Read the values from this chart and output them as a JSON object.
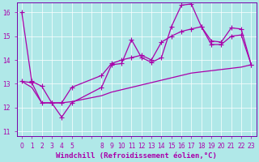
{
  "xlabel": "Windchill (Refroidissement éolien,°C)",
  "bg_color": "#b0e8e8",
  "line_color": "#aa00aa",
  "grid_color": "#ffffff",
  "ylim": [
    10.8,
    16.4
  ],
  "xlim": [
    -0.5,
    23.5
  ],
  "yticks": [
    11,
    12,
    13,
    14,
    15,
    16
  ],
  "xticks": [
    0,
    1,
    2,
    3,
    4,
    5,
    8,
    9,
    10,
    11,
    12,
    13,
    14,
    15,
    16,
    17,
    18,
    19,
    20,
    21,
    22,
    23
  ],
  "series": [
    {
      "x": [
        0,
        1,
        2,
        3,
        4,
        5,
        8,
        9,
        10,
        11,
        12,
        13,
        14,
        15,
        16,
        17,
        18,
        19,
        20,
        21,
        22,
        23
      ],
      "y": [
        16.0,
        13.1,
        12.9,
        12.2,
        11.6,
        12.2,
        12.85,
        13.8,
        13.85,
        14.85,
        14.1,
        13.9,
        14.1,
        15.4,
        16.3,
        16.35,
        15.4,
        14.8,
        14.75,
        15.35,
        15.3,
        13.8
      ],
      "marker": true
    },
    {
      "x": [
        0,
        1,
        2,
        3,
        4,
        5,
        8,
        9,
        10,
        11,
        12,
        13,
        14,
        15,
        16,
        17,
        18,
        19,
        20,
        21,
        22,
        23
      ],
      "y": [
        13.1,
        13.05,
        12.2,
        12.2,
        12.2,
        12.85,
        13.35,
        13.85,
        14.0,
        14.1,
        14.2,
        14.0,
        14.75,
        15.0,
        15.2,
        15.3,
        15.4,
        14.65,
        14.65,
        15.0,
        15.05,
        13.8
      ],
      "marker": true
    },
    {
      "x": [
        0,
        1,
        2,
        3,
        4,
        5,
        8,
        9,
        10,
        11,
        12,
        13,
        14,
        15,
        16,
        17,
        18,
        19,
        20,
        21,
        22,
        23
      ],
      "y": [
        13.1,
        12.85,
        12.2,
        12.2,
        12.2,
        12.25,
        12.5,
        12.65,
        12.75,
        12.85,
        12.95,
        13.05,
        13.15,
        13.25,
        13.35,
        13.45,
        13.5,
        13.55,
        13.6,
        13.65,
        13.7,
        13.8
      ],
      "marker": false
    }
  ],
  "marker_style": "+",
  "markersize": 4,
  "linewidth": 0.9,
  "tick_fontsize": 5.5,
  "xlabel_fontsize": 6.5,
  "tick_color": "#aa00aa",
  "axis_color": "#7700aa",
  "spine_color": "#7700aa"
}
